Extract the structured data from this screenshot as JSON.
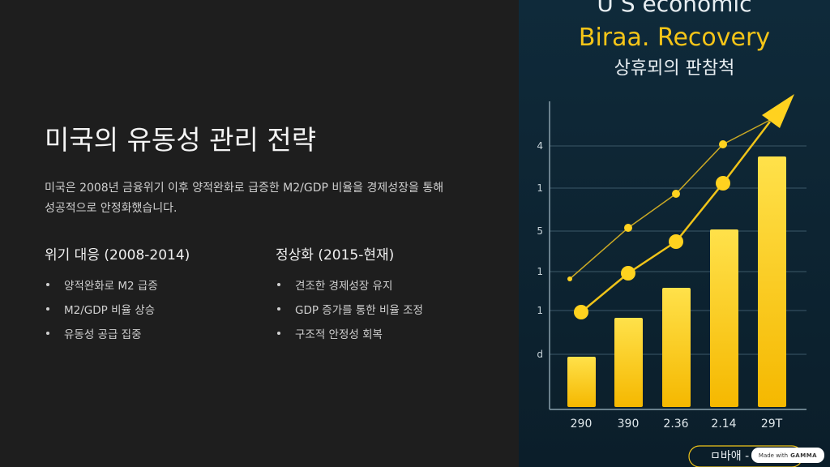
{
  "slide": {
    "title": "미국의 유동성 관리 전략",
    "description_lines": [
      "미국은 2008년 금융위기 이후 양적완화로 급증한 M2/GDP 비율을 경제성장을 통해",
      "성공적으로 안정화했습니다."
    ],
    "columns": [
      {
        "heading": "위기 대응 (2008-2014)",
        "items": [
          "양적완화로 M2 급증",
          "M2/GDP 비율 상승",
          "유동성 공급 집중"
        ]
      },
      {
        "heading": "정상화 (2015-현재)",
        "items": [
          "견조한 경제성장 유지",
          "GDP 증가를 통한 비율 조정",
          "구조적 안정성 회복"
        ]
      }
    ]
  },
  "illustration": {
    "title_lines": [
      "U S economic",
      "Biraa. Recovery",
      "상휴뫼의 판참척"
    ],
    "y_labels": [
      "4",
      "1",
      "5",
      "1",
      "1",
      "d"
    ],
    "x_labels": [
      "290",
      "390",
      "2.36",
      "2.14",
      "29T"
    ],
    "caption": "ㅁ바애 -"
  },
  "badge": {
    "made_with": "Made with",
    "brand": "GAMMA"
  }
}
